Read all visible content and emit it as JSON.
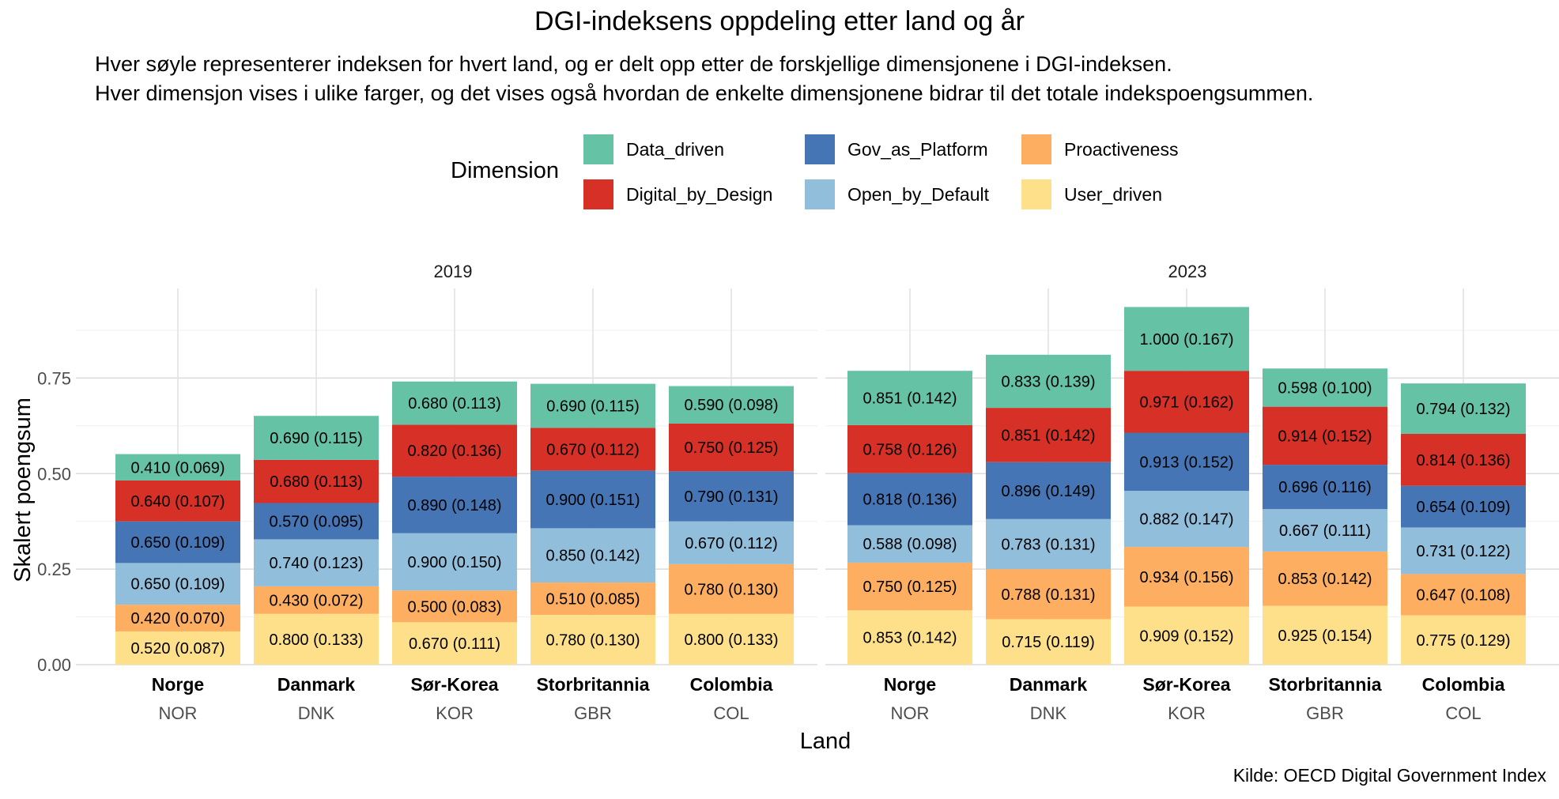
{
  "chart_data": {
    "type": "bar",
    "stacked": true,
    "title": "DGI-indeksens oppdeling etter land og år",
    "subtitle_lines": [
      "Hver søyle representerer indeksen for hvert land, og er delt opp etter de forskjellige dimensjonene i DGI-indeksen.",
      "Hver dimensjon vises i ulike farger, og det vises også hvordan de enkelte dimensjonene bidrar til det totale indekspoengsummen."
    ],
    "xlabel": "Land",
    "ylabel": "Skalert poengsum",
    "ylim": [
      0,
      0.95
    ],
    "yticks": [
      "0.00",
      "0.25",
      "0.50",
      "0.75"
    ],
    "grid": true,
    "caption": "Kilde: OECD Digital Government Index",
    "legend": {
      "title": "Dimension",
      "position": "top",
      "items": [
        {
          "key": "Data_driven",
          "label": "Data_driven",
          "color": "#66C2A5"
        },
        {
          "key": "Digital_by_Design",
          "label": "Digital_by_Design",
          "color": "#D73027"
        },
        {
          "key": "Gov_as_Platform",
          "label": "Gov_as_Platform",
          "color": "#4575B4"
        },
        {
          "key": "Open_by_Default",
          "label": "Open_by_Default",
          "color": "#91BFDB"
        },
        {
          "key": "Proactiveness",
          "label": "Proactiveness",
          "color": "#FDAE61"
        },
        {
          "key": "User_driven",
          "label": "User_driven",
          "color": "#FEE08B"
        }
      ]
    },
    "stack_order_bottom_to_top": [
      "User_driven",
      "Proactiveness",
      "Open_by_Default",
      "Gov_as_Platform",
      "Digital_by_Design",
      "Data_driven"
    ],
    "facets": [
      {
        "label": "2019",
        "bars": [
          {
            "country": "Norge",
            "code": "NOR",
            "segments": [
              {
                "dimension": "User_driven",
                "value": 0.087,
                "label": "0.520 (0.087)"
              },
              {
                "dimension": "Proactiveness",
                "value": 0.07,
                "label": "0.420 (0.070)"
              },
              {
                "dimension": "Open_by_Default",
                "value": 0.109,
                "label": "0.650 (0.109)"
              },
              {
                "dimension": "Gov_as_Platform",
                "value": 0.109,
                "label": "0.650 (0.109)"
              },
              {
                "dimension": "Digital_by_Design",
                "value": 0.107,
                "label": "0.640 (0.107)"
              },
              {
                "dimension": "Data_driven",
                "value": 0.069,
                "label": "0.410 (0.069)"
              }
            ]
          },
          {
            "country": "Danmark",
            "code": "DNK",
            "segments": [
              {
                "dimension": "User_driven",
                "value": 0.133,
                "label": "0.800 (0.133)"
              },
              {
                "dimension": "Proactiveness",
                "value": 0.072,
                "label": "0.430 (0.072)"
              },
              {
                "dimension": "Open_by_Default",
                "value": 0.123,
                "label": "0.740 (0.123)"
              },
              {
                "dimension": "Gov_as_Platform",
                "value": 0.095,
                "label": "0.570 (0.095)"
              },
              {
                "dimension": "Digital_by_Design",
                "value": 0.113,
                "label": "0.680 (0.113)"
              },
              {
                "dimension": "Data_driven",
                "value": 0.115,
                "label": "0.690 (0.115)"
              }
            ]
          },
          {
            "country": "Sør-Korea",
            "code": "KOR",
            "segments": [
              {
                "dimension": "User_driven",
                "value": 0.111,
                "label": "0.670 (0.111)"
              },
              {
                "dimension": "Proactiveness",
                "value": 0.083,
                "label": "0.500 (0.083)"
              },
              {
                "dimension": "Open_by_Default",
                "value": 0.15,
                "label": "0.900 (0.150)"
              },
              {
                "dimension": "Gov_as_Platform",
                "value": 0.148,
                "label": "0.890 (0.148)"
              },
              {
                "dimension": "Digital_by_Design",
                "value": 0.136,
                "label": "0.820 (0.136)"
              },
              {
                "dimension": "Data_driven",
                "value": 0.113,
                "label": "0.680 (0.113)"
              }
            ]
          },
          {
            "country": "Storbritannia",
            "code": "GBR",
            "segments": [
              {
                "dimension": "User_driven",
                "value": 0.13,
                "label": "0.780 (0.130)"
              },
              {
                "dimension": "Proactiveness",
                "value": 0.085,
                "label": "0.510 (0.085)"
              },
              {
                "dimension": "Open_by_Default",
                "value": 0.142,
                "label": "0.850 (0.142)"
              },
              {
                "dimension": "Gov_as_Platform",
                "value": 0.151,
                "label": "0.900 (0.151)"
              },
              {
                "dimension": "Digital_by_Design",
                "value": 0.112,
                "label": "0.670 (0.112)"
              },
              {
                "dimension": "Data_driven",
                "value": 0.115,
                "label": "0.690 (0.115)"
              }
            ]
          },
          {
            "country": "Colombia",
            "code": "COL",
            "segments": [
              {
                "dimension": "User_driven",
                "value": 0.133,
                "label": "0.800 (0.133)"
              },
              {
                "dimension": "Proactiveness",
                "value": 0.13,
                "label": "0.780 (0.130)"
              },
              {
                "dimension": "Open_by_Default",
                "value": 0.112,
                "label": "0.670 (0.112)"
              },
              {
                "dimension": "Gov_as_Platform",
                "value": 0.131,
                "label": "0.790 (0.131)"
              },
              {
                "dimension": "Digital_by_Design",
                "value": 0.125,
                "label": "0.750 (0.125)"
              },
              {
                "dimension": "Data_driven",
                "value": 0.098,
                "label": "0.590 (0.098)"
              }
            ]
          }
        ]
      },
      {
        "label": "2023",
        "bars": [
          {
            "country": "Norge",
            "code": "NOR",
            "segments": [
              {
                "dimension": "User_driven",
                "value": 0.142,
                "label": "0.853 (0.142)"
              },
              {
                "dimension": "Proactiveness",
                "value": 0.125,
                "label": "0.750 (0.125)"
              },
              {
                "dimension": "Open_by_Default",
                "value": 0.098,
                "label": "0.588 (0.098)"
              },
              {
                "dimension": "Gov_as_Platform",
                "value": 0.136,
                "label": "0.818 (0.136)"
              },
              {
                "dimension": "Digital_by_Design",
                "value": 0.126,
                "label": "0.758 (0.126)"
              },
              {
                "dimension": "Data_driven",
                "value": 0.142,
                "label": "0.851 (0.142)"
              }
            ]
          },
          {
            "country": "Danmark",
            "code": "DNK",
            "segments": [
              {
                "dimension": "User_driven",
                "value": 0.119,
                "label": "0.715 (0.119)"
              },
              {
                "dimension": "Proactiveness",
                "value": 0.131,
                "label": "0.788 (0.131)"
              },
              {
                "dimension": "Open_by_Default",
                "value": 0.131,
                "label": "0.783 (0.131)"
              },
              {
                "dimension": "Gov_as_Platform",
                "value": 0.149,
                "label": "0.896 (0.149)"
              },
              {
                "dimension": "Digital_by_Design",
                "value": 0.142,
                "label": "0.851 (0.142)"
              },
              {
                "dimension": "Data_driven",
                "value": 0.139,
                "label": "0.833 (0.139)"
              }
            ]
          },
          {
            "country": "Sør-Korea",
            "code": "KOR",
            "segments": [
              {
                "dimension": "User_driven",
                "value": 0.152,
                "label": "0.909 (0.152)"
              },
              {
                "dimension": "Proactiveness",
                "value": 0.156,
                "label": "0.934 (0.156)"
              },
              {
                "dimension": "Open_by_Default",
                "value": 0.147,
                "label": "0.882 (0.147)"
              },
              {
                "dimension": "Gov_as_Platform",
                "value": 0.152,
                "label": "0.913 (0.152)"
              },
              {
                "dimension": "Digital_by_Design",
                "value": 0.162,
                "label": "0.971 (0.162)"
              },
              {
                "dimension": "Data_driven",
                "value": 0.167,
                "label": "1.000 (0.167)"
              }
            ]
          },
          {
            "country": "Storbritannia",
            "code": "GBR",
            "segments": [
              {
                "dimension": "User_driven",
                "value": 0.154,
                "label": "0.925 (0.154)"
              },
              {
                "dimension": "Proactiveness",
                "value": 0.142,
                "label": "0.853 (0.142)"
              },
              {
                "dimension": "Open_by_Default",
                "value": 0.111,
                "label": "0.667 (0.111)"
              },
              {
                "dimension": "Gov_as_Platform",
                "value": 0.116,
                "label": "0.696 (0.116)"
              },
              {
                "dimension": "Digital_by_Design",
                "value": 0.152,
                "label": "0.914 (0.152)"
              },
              {
                "dimension": "Data_driven",
                "value": 0.1,
                "label": "0.598 (0.100)"
              }
            ]
          },
          {
            "country": "Colombia",
            "code": "COL",
            "segments": [
              {
                "dimension": "User_driven",
                "value": 0.129,
                "label": "0.775 (0.129)"
              },
              {
                "dimension": "Proactiveness",
                "value": 0.108,
                "label": "0.647 (0.108)"
              },
              {
                "dimension": "Open_by_Default",
                "value": 0.122,
                "label": "0.731 (0.122)"
              },
              {
                "dimension": "Gov_as_Platform",
                "value": 0.109,
                "label": "0.654 (0.109)"
              },
              {
                "dimension": "Digital_by_Design",
                "value": 0.136,
                "label": "0.814 (0.136)"
              },
              {
                "dimension": "Data_driven",
                "value": 0.132,
                "label": "0.794 (0.132)"
              }
            ]
          }
        ]
      }
    ]
  }
}
